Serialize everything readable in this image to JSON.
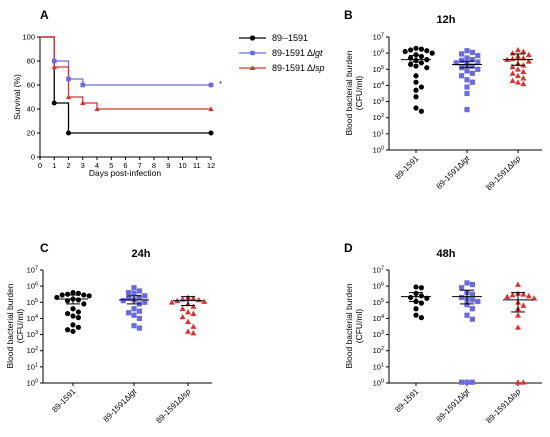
{
  "colors": {
    "wt": "#000000",
    "lgt": "#6b6bdc",
    "lsp": "#d8342f"
  },
  "chart_data": [
    {
      "panel": "A",
      "type": "line",
      "subtype": "step",
      "title": "",
      "xlabel": "Days post-infection",
      "ylabel": "Survival (%)",
      "xlim": [
        0,
        12
      ],
      "ylim": [
        0,
        100
      ],
      "xticks": [
        "0",
        "1",
        "2",
        "3",
        "4",
        "5",
        "6",
        "7",
        "8",
        "9",
        "10",
        "11",
        "12"
      ],
      "yticks": [
        "0",
        "20",
        "40",
        "60",
        "80",
        "100"
      ],
      "significance": "*",
      "legend_position": "right",
      "series": [
        {
          "name": "89--1591",
          "italic": "",
          "color": "wt",
          "marker": "circle",
          "x": [
            0,
            1,
            2,
            12
          ],
          "y": [
            100,
            45,
            20,
            20
          ],
          "marker_x": [
            1,
            2,
            12
          ],
          "marker_y": [
            45,
            20,
            20
          ]
        },
        {
          "name": "89-1591 Δ",
          "italic": "lgt",
          "color": "lgt",
          "marker": "square",
          "x": [
            0,
            1,
            2,
            3,
            12
          ],
          "y": [
            100,
            80,
            65,
            60,
            60
          ],
          "marker_x": [
            1,
            2,
            3,
            12
          ],
          "marker_y": [
            80,
            65,
            60,
            60
          ]
        },
        {
          "name": "89-1591 Δ",
          "italic": "lsp",
          "color": "lsp",
          "marker": "triangle",
          "x": [
            0,
            1,
            2,
            3,
            4,
            12
          ],
          "y": [
            100,
            75,
            50,
            45,
            40,
            40
          ],
          "marker_x": [
            1,
            2,
            3,
            4,
            12
          ],
          "marker_y": [
            75,
            50,
            45,
            40,
            40
          ]
        }
      ]
    },
    {
      "panel": "B",
      "type": "scatter",
      "subtype": "dot-plot",
      "title": "12h",
      "ylabel": "Blood bacterial burden (CFU/ml)",
      "yscale": "log",
      "ylim_exp": [
        0,
        7
      ],
      "categories": [
        "89-1591",
        "89-1591Δlgt",
        "89-1591Δlsp"
      ],
      "series": [
        {
          "name": "89-1591",
          "color": "wt",
          "marker": "circle",
          "mean": 5.6,
          "sem": [
            5.45,
            5.85
          ],
          "values": [
            6.3,
            6.25,
            6.2,
            6.15,
            6.1,
            6.0,
            5.9,
            5.8,
            5.7,
            5.6,
            5.55,
            5.4,
            5.3,
            5.2,
            5.1,
            4.6,
            4.2,
            3.9,
            3.7,
            3.3,
            2.6,
            2.4
          ]
        },
        {
          "name": "89-1591Δlgt",
          "color": "lgt",
          "marker": "square",
          "mean": 5.3,
          "sem": [
            5.1,
            5.5
          ],
          "values": [
            6.15,
            6.05,
            5.95,
            5.85,
            5.7,
            5.6,
            5.55,
            5.45,
            5.4,
            5.3,
            5.2,
            5.1,
            5.0,
            4.9,
            4.75,
            4.6,
            4.35,
            4.2,
            3.9,
            3.5,
            2.5
          ]
        },
        {
          "name": "89-1591Δlsp",
          "color": "lsp",
          "marker": "triangle",
          "mean": 5.6,
          "sem": [
            5.25,
            5.95
          ],
          "values": [
            6.2,
            6.1,
            6.0,
            5.9,
            5.8,
            5.7,
            5.65,
            5.6,
            5.5,
            5.35,
            5.25,
            5.15,
            5.0,
            4.85,
            4.75,
            4.6,
            4.45,
            4.3,
            4.2,
            4.1
          ]
        }
      ]
    },
    {
      "panel": "C",
      "type": "scatter",
      "subtype": "dot-plot",
      "title": "24h",
      "ylabel": "Blood bacterial burden (CFU/ml)",
      "yscale": "log",
      "ylim_exp": [
        0,
        7
      ],
      "categories": [
        "89-1591",
        "89-1591Δlgt",
        "89-1591Δlsp"
      ],
      "series": [
        {
          "name": "89-1591",
          "color": "wt",
          "marker": "circle",
          "mean": 5.2,
          "sem": [
            4.9,
            5.45
          ],
          "values": [
            5.6,
            5.55,
            5.5,
            5.45,
            5.45,
            5.4,
            5.3,
            5.2,
            5.15,
            5.1,
            4.9,
            4.6,
            4.4,
            4.3,
            4.15,
            4.05,
            3.6,
            3.45,
            3.3,
            3.2
          ]
        },
        {
          "name": "89-1591Δlgt",
          "color": "lgt",
          "marker": "square",
          "mean": 5.15,
          "sem": [
            4.9,
            5.4
          ],
          "values": [
            5.9,
            5.7,
            5.6,
            5.55,
            5.4,
            5.3,
            5.25,
            5.15,
            5.1,
            5.0,
            4.9,
            4.6,
            4.45,
            4.35,
            4.2,
            4.0,
            3.55,
            3.4
          ]
        },
        {
          "name": "89-1591Δlsp",
          "color": "lsp",
          "marker": "triangle",
          "mean": 5.1,
          "sem": [
            4.8,
            5.35
          ],
          "values": [
            5.3,
            5.25,
            5.2,
            5.15,
            5.1,
            5.05,
            5.0,
            4.9,
            4.75,
            4.6,
            4.4,
            4.3,
            4.1,
            3.8,
            3.5,
            3.2,
            3.1
          ]
        }
      ]
    },
    {
      "panel": "D",
      "type": "scatter",
      "subtype": "dot-plot",
      "title": "48h",
      "ylabel": "Blood bacterial burden (CFU/ml)",
      "yscale": "log",
      "ylim_exp": [
        0,
        7
      ],
      "categories": [
        "89-1591",
        "89-1591Δlgt",
        "89-1591Δlsp"
      ],
      "series": [
        {
          "name": "89-1591",
          "color": "wt",
          "marker": "circle",
          "mean": 5.35,
          "sem": [
            5.05,
            5.6
          ],
          "values": [
            5.95,
            5.9,
            5.55,
            5.4,
            5.3,
            5.25,
            5.05,
            4.95,
            4.6,
            4.2,
            4.05
          ]
        },
        {
          "name": "89-1591Δlgt",
          "color": "lgt",
          "marker": "square",
          "mean": 5.35,
          "sem": [
            4.9,
            5.75
          ],
          "values": [
            6.2,
            6.1,
            5.9,
            5.6,
            5.5,
            5.3,
            5.2,
            5.15,
            5.05,
            4.85,
            4.6,
            4.2,
            3.95,
            0.05,
            0.05,
            0.05
          ]
        },
        {
          "name": "89-1591Δlsp",
          "color": "lsp",
          "marker": "triangle",
          "mean": 5.15,
          "sem": [
            4.4,
            5.6
          ],
          "values": [
            6.1,
            5.55,
            5.5,
            5.45,
            5.4,
            5.35,
            5.25,
            5.0,
            4.8,
            4.6,
            4.2,
            3.45,
            0.05,
            0.05
          ]
        }
      ]
    }
  ]
}
